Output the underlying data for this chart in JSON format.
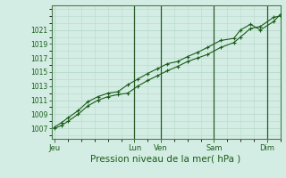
{
  "bg_color": "#d4ede4",
  "grid_color": "#b8d8cc",
  "line_color": "#1a5c1a",
  "ylabel_vals": [
    1007,
    1009,
    1011,
    1013,
    1015,
    1017,
    1019,
    1021
  ],
  "ylim": [
    1005.5,
    1024.5
  ],
  "xlabel": "Pression niveau de la mer( hPa )",
  "xlabel_fontsize": 7.5,
  "xtick_labels": [
    "Jeu",
    "Lun",
    "Ven",
    "Sam",
    "Dim"
  ],
  "xtick_positions": [
    0,
    48,
    64,
    96,
    128
  ],
  "xlim": [
    -2,
    136
  ],
  "day_lines": [
    48,
    64,
    96,
    128
  ],
  "line1_x": [
    0,
    4,
    8,
    14,
    20,
    26,
    32,
    38,
    44,
    50,
    56,
    62,
    68,
    74,
    80,
    86,
    92,
    100,
    108,
    112,
    118,
    124,
    132,
    136
  ],
  "line1_y": [
    1007.0,
    1007.4,
    1008.0,
    1009.0,
    1010.2,
    1011.0,
    1011.5,
    1011.8,
    1012.0,
    1013.0,
    1013.8,
    1014.5,
    1015.2,
    1015.8,
    1016.5,
    1017.0,
    1017.5,
    1018.5,
    1019.2,
    1020.0,
    1021.2,
    1021.5,
    1022.8,
    1023.0
  ],
  "line2_x": [
    0,
    4,
    8,
    14,
    20,
    26,
    32,
    38,
    44,
    50,
    56,
    62,
    68,
    74,
    80,
    86,
    92,
    100,
    108,
    112,
    118,
    124,
    132,
    136
  ],
  "line2_y": [
    1007.2,
    1007.8,
    1008.5,
    1009.5,
    1010.8,
    1011.5,
    1012.0,
    1012.2,
    1013.2,
    1014.0,
    1014.8,
    1015.5,
    1016.2,
    1016.5,
    1017.2,
    1017.8,
    1018.5,
    1019.5,
    1019.8,
    1021.0,
    1021.8,
    1021.0,
    1022.2,
    1023.2
  ]
}
